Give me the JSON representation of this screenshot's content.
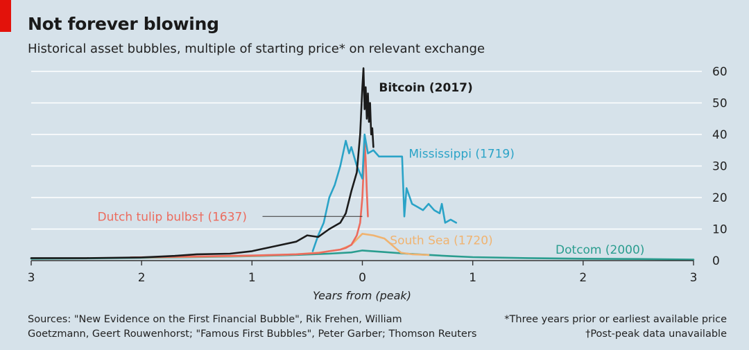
{
  "header": {
    "title": "Not forever blowing",
    "subtitle": "Historical asset bubbles, multiple of starting price* on relevant exchange"
  },
  "footer": {
    "sources_line1": "Sources: \"New Evidence on the First Financial Bubble\", Rik Frehen, William",
    "sources_line2": "Goetzmann, Geert Rouwenhorst; \"Famous First Bubbles\", Peter Garber; Thomson Reuters",
    "footnote1": "*Three years prior or earliest available price",
    "footnote2": "†Post-peak data unavailable"
  },
  "colors": {
    "background": "#d6e2ea",
    "gridline": "#ffffff",
    "brand_red": "#e3120b",
    "bitcoin": "#1b1b1b",
    "mississippi": "#2aa3c7",
    "tulip": "#ec6b5d",
    "south_sea": "#f0b370",
    "dotcom": "#2a9d8f"
  },
  "chart_data": {
    "type": "line",
    "xlabel": "Years from (peak)",
    "ylabel": "",
    "xlim": [
      -3,
      3
    ],
    "ylim": [
      0,
      60
    ],
    "x_tick_values": [
      -3,
      -2,
      -1,
      0,
      1,
      2,
      3
    ],
    "x_tick_labels": [
      "3",
      "2",
      "1",
      "0",
      "1",
      "2",
      "3"
    ],
    "y_ticks": [
      0,
      10,
      20,
      30,
      40,
      50,
      60
    ],
    "grid": true,
    "y_axis_side": "right",
    "series": [
      {
        "name": "Dotcom (2000)",
        "color": "#2a9d8f",
        "x": [
          -3,
          -2.5,
          -2,
          -1.5,
          -1,
          -0.6,
          -0.3,
          -0.1,
          0,
          0.2,
          0.4,
          0.6,
          0.8,
          1,
          1.5,
          2,
          2.5,
          3
        ],
        "y": [
          0.6,
          0.7,
          0.9,
          1.1,
          1.4,
          1.8,
          2.2,
          2.6,
          3.2,
          2.7,
          2.2,
          1.8,
          1.4,
          1.1,
          0.8,
          0.6,
          0.5,
          0.3
        ]
      },
      {
        "name": "South Sea (1720)",
        "color": "#f0b370",
        "x": [
          -2,
          -1.5,
          -1,
          -0.6,
          -0.4,
          -0.2,
          -0.1,
          0,
          0.1,
          0.2,
          0.3,
          0.35,
          0.45,
          0.6
        ],
        "y": [
          1,
          1.2,
          1.5,
          2,
          2.5,
          3.5,
          5,
          8.5,
          8,
          7,
          4,
          2.5,
          2,
          1.8
        ]
      },
      {
        "name": "Dutch tulip bulbs† (1637)",
        "color": "#ec6b5d",
        "x": [
          -2.1,
          -1.5,
          -1,
          -0.8,
          -0.6,
          -0.4,
          -0.3,
          -0.2,
          -0.15,
          -0.1,
          -0.05,
          -0.02,
          0,
          0.01,
          0.02,
          0.03,
          0.04,
          0.05
        ],
        "y": [
          1,
          1.3,
          1.6,
          1.8,
          2,
          2.4,
          3,
          3.5,
          4,
          5,
          8,
          12,
          20,
          28,
          38,
          32,
          22,
          14
        ]
      },
      {
        "name": "Mississippi (1719)",
        "color": "#2aa3c7",
        "x": [
          -0.45,
          -0.4,
          -0.35,
          -0.3,
          -0.25,
          -0.2,
          -0.15,
          -0.12,
          -0.1,
          -0.05,
          0,
          0.02,
          0.05,
          0.1,
          0.15,
          0.2,
          0.3,
          0.36,
          0.38,
          0.4,
          0.45,
          0.5,
          0.55,
          0.6,
          0.65,
          0.7,
          0.72,
          0.75,
          0.8,
          0.85
        ],
        "y": [
          3,
          8,
          12,
          20,
          24,
          30,
          38,
          34,
          36,
          30,
          26,
          40,
          34,
          35,
          33,
          33,
          33,
          33,
          14,
          23,
          18,
          17,
          16,
          18,
          16,
          15,
          18,
          12,
          13,
          12
        ]
      },
      {
        "name": "Bitcoin (2017)",
        "color": "#1b1b1b",
        "x": [
          -3,
          -2.5,
          -2,
          -1.7,
          -1.5,
          -1.2,
          -1,
          -0.8,
          -0.6,
          -0.5,
          -0.4,
          -0.3,
          -0.2,
          -0.15,
          -0.1,
          -0.05,
          -0.02,
          0,
          0.01,
          0.02,
          0.03,
          0.04,
          0.05,
          0.06,
          0.07,
          0.08,
          0.09,
          0.1
        ],
        "y": [
          0.8,
          0.8,
          1,
          1.5,
          2,
          2.2,
          3,
          4.5,
          6,
          8,
          7.5,
          10,
          12,
          15,
          22,
          28,
          40,
          55,
          61,
          48,
          55,
          45,
          53,
          44,
          50,
          40,
          42,
          36
        ]
      }
    ],
    "annotations": [
      {
        "text": "Bitcoin (2017)",
        "series": "Bitcoin (2017)",
        "x": 0.15,
        "y": 55
      },
      {
        "text": "Mississippi (1719)",
        "series": "Mississippi (1719)",
        "x": 0.42,
        "y": 34
      },
      {
        "text": "Dutch tulip bulbs† (1637)",
        "series": "Dutch tulip bulbs† (1637)",
        "x": -2.4,
        "y": 14,
        "leader_to": [
          0,
          14
        ]
      },
      {
        "text": "South Sea (1720)",
        "series": "South Sea (1720)",
        "x": 0.25,
        "y": 6.5
      },
      {
        "text": "Dotcom (2000)",
        "series": "Dotcom (2000)",
        "x": 1.75,
        "y": 3.5
      }
    ]
  }
}
